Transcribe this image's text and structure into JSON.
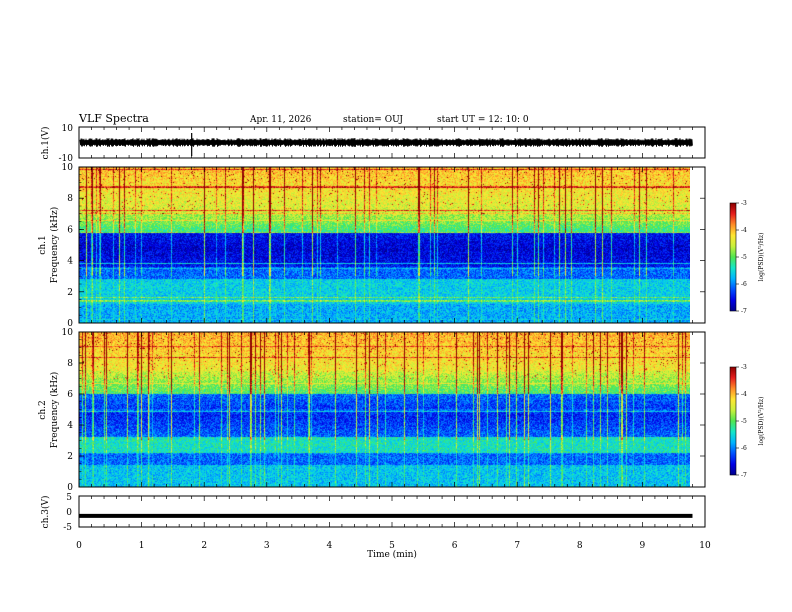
{
  "header": {
    "title": "VLF Spectra",
    "date": "Apr. 11, 2026",
    "station": "station= OUJ",
    "start_ut": "start  UT =   12: 10: 0"
  },
  "colors": {
    "spectrum": [
      "#00008c",
      "#0000e6",
      "#0050ff",
      "#00b4ff",
      "#14e6c8",
      "#50e650",
      "#c8f03c",
      "#ffe632",
      "#ff8c28",
      "#e61e1e",
      "#8c0000"
    ],
    "trace": "#000000",
    "axis": "#000000"
  },
  "chart_data": [
    {
      "id": "ch1-waveform",
      "type": "line",
      "ylabel": "ch.1(V)",
      "ylim": [
        -10,
        10
      ],
      "yticks": [
        "10",
        "-10"
      ],
      "xlim": [
        0,
        10
      ],
      "note": "noisy waveform envelope about 0 V, amplitude ~2-3 V, spike near t=1.8 min"
    },
    {
      "id": "ch1-spectrogram",
      "type": "heatmap",
      "ylabel": "ch.1\nFrequency (kHz)",
      "ylabel_lines": [
        "ch.1",
        "Frequency (kHz)"
      ],
      "ylim": [
        0,
        10
      ],
      "yticks": [
        "0",
        "2",
        "4",
        "6",
        "8",
        "10"
      ],
      "xlim": [
        0,
        10
      ],
      "colorbar": {
        "label": "log(PSD)(V²/Hz)",
        "range": [
          -7,
          -3
        ],
        "ticks": [
          "-3",
          "-4",
          "-5",
          "-6",
          "-7"
        ]
      },
      "data_end_min": 9.8
    },
    {
      "id": "ch2-spectrogram",
      "type": "heatmap",
      "ylabel_lines": [
        "ch.2",
        "Frequency (kHz)"
      ],
      "ylim": [
        0,
        10
      ],
      "yticks": [
        "0",
        "2",
        "4",
        "6",
        "8",
        "10"
      ],
      "xlim": [
        0,
        10
      ],
      "colorbar": {
        "label": "log(PSD)(V²/Hz)",
        "range": [
          -7,
          -3
        ],
        "ticks": [
          "-3",
          "-4",
          "-5",
          "-6",
          "-7"
        ]
      },
      "data_end_min": 9.8
    },
    {
      "id": "ch3-waveform",
      "type": "line",
      "ylabel": "ch.3(V)",
      "ylim": [
        -5,
        5
      ],
      "yticks": [
        "5",
        "0",
        "-5"
      ],
      "xlim": [
        0,
        10
      ],
      "note": "flat thick trace near -1.4 V"
    }
  ],
  "xaxis": {
    "label": "Time (min)",
    "ticks": [
      "0",
      "1",
      "2",
      "3",
      "4",
      "5",
      "6",
      "7",
      "8",
      "9",
      "10"
    ]
  }
}
